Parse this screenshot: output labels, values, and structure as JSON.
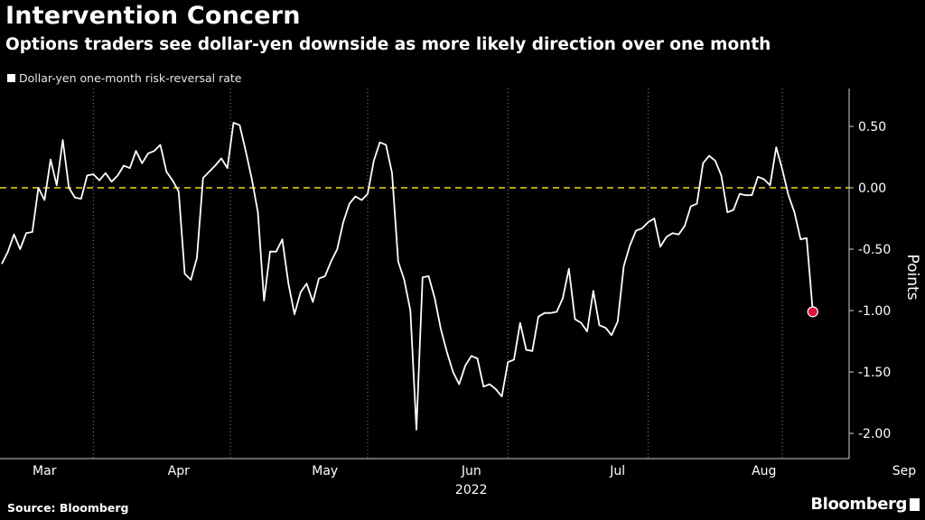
{
  "header": {
    "title": "Intervention Concern",
    "subtitle": "Options traders see dollar-yen downside as more likely direction over one month"
  },
  "footer": {
    "source": "Source: Bloomberg",
    "logo": "Bloomberg"
  },
  "colors": {
    "background": "#000000",
    "line": "#ffffff",
    "zero_line": "#e8dc1f",
    "grid": "#8a8a8a",
    "marker": "#e0123a"
  },
  "chart_data": {
    "type": "line",
    "title": "Intervention Concern",
    "subtitle": "Options traders see dollar-yen downside as more likely direction over one month",
    "ylabel": "Points",
    "xlabel": "2022",
    "ylim": [
      -2.25,
      0.8
    ],
    "yticks": [
      0.5,
      0.0,
      -0.5,
      -1.0,
      -1.5,
      -2.0
    ],
    "ytick_labels": [
      "0.50",
      "0.00",
      "-0.50",
      "-1.00",
      "-1.50",
      "-2.00"
    ],
    "xlim": [
      0,
      136
    ],
    "month_ticks": [
      {
        "label": "Mar",
        "pos": 7
      },
      {
        "label": "Apr",
        "pos": 29
      },
      {
        "label": "May",
        "pos": 53
      },
      {
        "label": "Jun",
        "pos": 77
      },
      {
        "label": "Jul",
        "pos": 101
      },
      {
        "label": "Aug",
        "pos": 125
      },
      {
        "label": "Sep",
        "pos": 148
      }
    ],
    "grid_lines": [
      15,
      37.5,
      60,
      83,
      106,
      128,
      149
    ],
    "year_label": "2022",
    "reference_line": {
      "value": 0,
      "style": "dashed"
    },
    "legend": [
      "Dollar-yen one-month risk-reversal rate"
    ],
    "legend_position": "top-left",
    "last_point_marker": true,
    "series": [
      {
        "name": "Dollar-yen one-month risk-reversal rate",
        "values": [
          -0.62,
          -0.52,
          -0.38,
          -0.5,
          -0.37,
          -0.36,
          0.0,
          -0.1,
          0.23,
          0.02,
          0.39,
          0.0,
          -0.08,
          -0.09,
          0.1,
          0.11,
          0.06,
          0.12,
          0.05,
          0.1,
          0.18,
          0.16,
          0.3,
          0.2,
          0.28,
          0.3,
          0.35,
          0.13,
          0.06,
          -0.03,
          -0.7,
          -0.75,
          -0.57,
          0.08,
          0.13,
          0.18,
          0.24,
          0.16,
          0.53,
          0.51,
          0.3,
          0.07,
          -0.2,
          -0.92,
          -0.52,
          -0.52,
          -0.42,
          -0.78,
          -1.03,
          -0.85,
          -0.78,
          -0.93,
          -0.74,
          -0.72,
          -0.6,
          -0.5,
          -0.28,
          -0.13,
          -0.07,
          -0.1,
          -0.05,
          0.22,
          0.37,
          0.35,
          0.12,
          -0.6,
          -0.75,
          -1.0,
          -1.97,
          -0.73,
          -0.72,
          -0.9,
          -1.15,
          -1.34,
          -1.5,
          -1.6,
          -1.45,
          -1.37,
          -1.39,
          -1.62,
          -1.6,
          -1.64,
          -1.7,
          -1.42,
          -1.4,
          -1.1,
          -1.32,
          -1.33,
          -1.05,
          -1.02,
          -1.02,
          -1.01,
          -0.9,
          -0.66,
          -1.07,
          -1.1,
          -1.17,
          -0.84,
          -1.12,
          -1.14,
          -1.2,
          -1.09,
          -0.64,
          -0.47,
          -0.35,
          -0.33,
          -0.28,
          -0.25,
          -0.48,
          -0.4,
          -0.37,
          -0.38,
          -0.31,
          -0.15,
          -0.13,
          0.2,
          0.26,
          0.22,
          0.1,
          -0.2,
          -0.18,
          -0.05,
          -0.06,
          -0.06,
          0.09,
          0.07,
          0.02,
          0.33,
          0.15,
          -0.06,
          -0.2,
          -0.42,
          -0.41,
          -1.01
        ]
      }
    ]
  }
}
